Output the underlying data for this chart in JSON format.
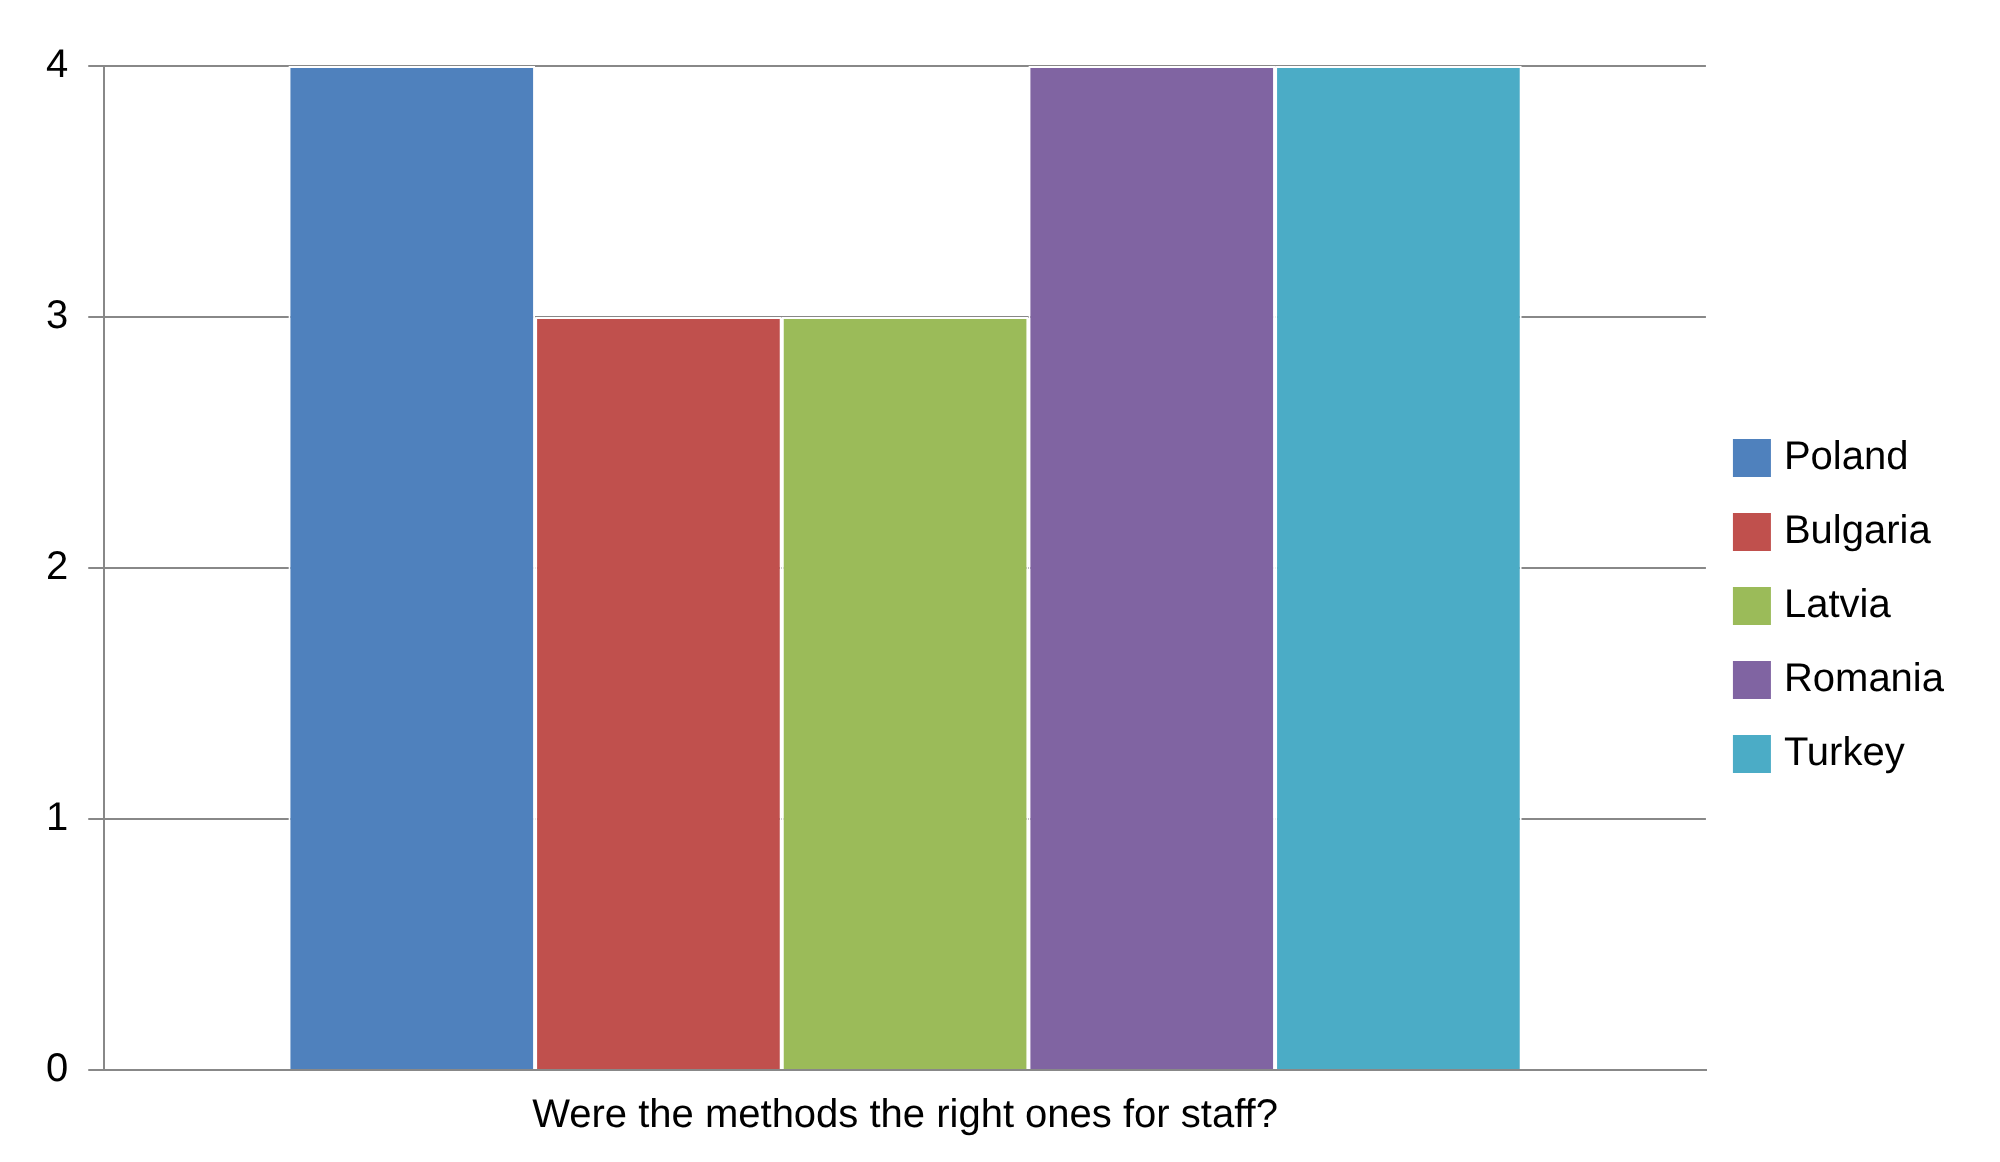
{
  "chart_data": {
    "type": "bar",
    "categories": [
      "Were the methods the right ones for staff?"
    ],
    "series": [
      {
        "name": "Poland",
        "color": "#4f81bd",
        "values": [
          4
        ]
      },
      {
        "name": "Bulgaria",
        "color": "#c0504d",
        "values": [
          3
        ]
      },
      {
        "name": "Latvia",
        "color": "#9bbb59",
        "values": [
          3
        ]
      },
      {
        "name": "Romania",
        "color": "#8064a2",
        "values": [
          4
        ]
      },
      {
        "name": "Turkey",
        "color": "#4bacc6",
        "values": [
          4
        ]
      }
    ],
    "ylim": [
      0,
      4
    ],
    "yticks": [
      0,
      1,
      2,
      3,
      4
    ],
    "grid": "y",
    "legend": "right"
  }
}
